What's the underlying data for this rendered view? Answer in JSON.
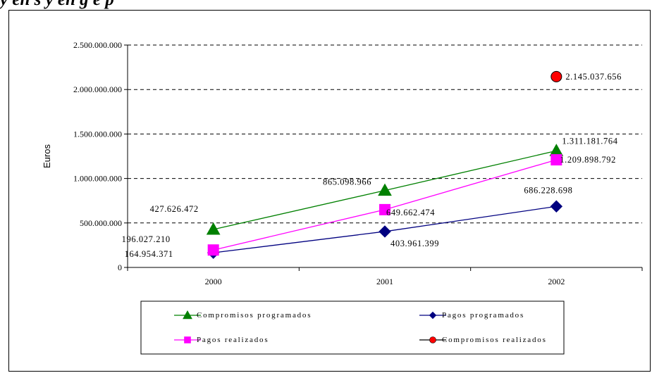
{
  "caption": "y     en   s   y                   en             g  e   p",
  "chart_data": {
    "type": "line",
    "ylabel": "Euros",
    "xlabel": "",
    "categories": [
      "2000",
      "2001",
      "2002"
    ],
    "ylim": [
      0,
      2500000000
    ],
    "yticks": [
      0,
      500000000,
      1000000000,
      1500000000,
      2000000000,
      2500000000
    ],
    "ytick_labels": [
      "0",
      "500.000.000",
      "1.000.000.000",
      "1.500.000.000",
      "2.000.000.000",
      "2.500.000.000"
    ],
    "grid": "dashed horizontal",
    "legend_position": "bottom",
    "series": [
      {
        "name": "Compromisos programados",
        "color": "#008000",
        "marker": "triangle",
        "values": [
          427626472,
          865098966,
          1311181764
        ],
        "labels": [
          "427.626.472",
          "865.098.966",
          "1.311.181.764"
        ]
      },
      {
        "name": "Pagos programados",
        "color": "#000080",
        "marker": "diamond",
        "values": [
          164954371,
          403961399,
          686228698
        ],
        "labels": [
          "164.954.371",
          "403.961.399",
          "686.228.698"
        ]
      },
      {
        "name": "Pagos realizados",
        "color": "#ff00ff",
        "marker": "square",
        "values": [
          196027210,
          649662474,
          1209898792
        ],
        "labels": [
          "196.027.210",
          "649.662.474",
          "1.209.898.792"
        ]
      },
      {
        "name": "Compromisos realizados",
        "color": "#ff0000",
        "marker": "circle",
        "values": [
          null,
          null,
          2145037656
        ],
        "labels": [
          "",
          "",
          "2.145.037.656"
        ]
      }
    ]
  }
}
